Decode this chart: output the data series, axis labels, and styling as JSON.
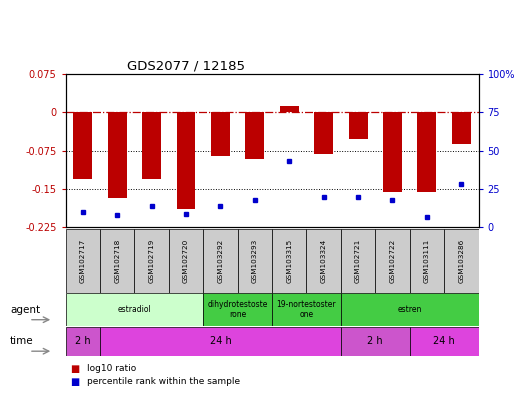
{
  "title": "GDS2077 / 12185",
  "samples": [
    "GSM102717",
    "GSM102718",
    "GSM102719",
    "GSM102720",
    "GSM103292",
    "GSM103293",
    "GSM103315",
    "GSM103324",
    "GSM102721",
    "GSM102722",
    "GSM103111",
    "GSM103286"
  ],
  "log10_ratio": [
    -0.13,
    -0.168,
    -0.13,
    -0.19,
    -0.085,
    -0.092,
    0.012,
    -0.082,
    -0.052,
    -0.155,
    -0.155,
    -0.062
  ],
  "percentile_rank": [
    10,
    8,
    14,
    9,
    14,
    18,
    43,
    20,
    20,
    18,
    7,
    28
  ],
  "bar_color": "#bb0000",
  "dot_color": "#0000cc",
  "ylim_left": [
    -0.225,
    0.075
  ],
  "ylim_right": [
    0,
    100
  ],
  "yticks_left": [
    0.075,
    0,
    -0.075,
    -0.15,
    -0.225
  ],
  "yticks_right": [
    100,
    75,
    50,
    25,
    0
  ],
  "agent_groups": [
    {
      "label": "estradiol",
      "start": 0,
      "end": 4,
      "color": "#ccffcc"
    },
    {
      "label": "dihydrotestoste\nrone",
      "start": 4,
      "end": 6,
      "color": "#44cc44"
    },
    {
      "label": "19-nortestoster\none",
      "start": 6,
      "end": 8,
      "color": "#44cc44"
    },
    {
      "label": "estren",
      "start": 8,
      "end": 12,
      "color": "#44cc44"
    }
  ],
  "time_groups": [
    {
      "label": "2 h",
      "start": 0,
      "end": 1,
      "color": "#cc55cc"
    },
    {
      "label": "24 h",
      "start": 1,
      "end": 8,
      "color": "#dd44dd"
    },
    {
      "label": "2 h",
      "start": 8,
      "end": 10,
      "color": "#cc55cc"
    },
    {
      "label": "24 h",
      "start": 10,
      "end": 12,
      "color": "#dd44dd"
    }
  ],
  "legend_red_label": "log10 ratio",
  "legend_blue_label": "percentile rank within the sample",
  "agent_label": "agent",
  "time_label": "time",
  "bar_width": 0.55,
  "sample_bg": "#cccccc",
  "plot_bg": "#ffffff"
}
